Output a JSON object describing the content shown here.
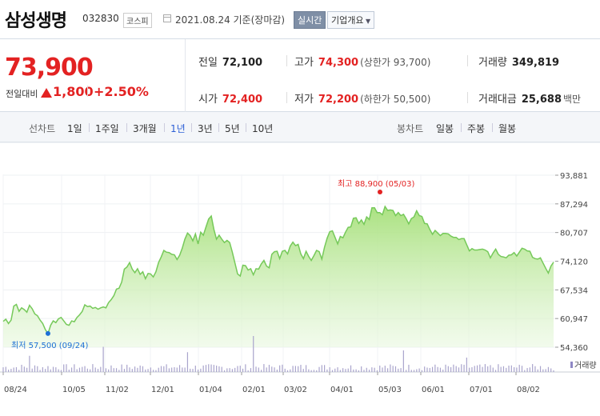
{
  "header": {
    "stock_name": "삼성생명",
    "stock_code": "032830",
    "market": "코스피",
    "date_text": "2021.08.24 기준(장마감)",
    "realtime_label": "실시간",
    "overview_label": "기업개요"
  },
  "summary": {
    "price": "73,900",
    "change_label": "전일대비",
    "change_value": "1,800",
    "change_percent": "+2.50%",
    "prev_close_label": "전일",
    "prev_close": "72,100",
    "high_label": "고가",
    "high": "74,300",
    "upper_limit": "(상한가 93,700)",
    "volume_label": "거래량",
    "volume": "349,819",
    "open_label": "시가",
    "open": "72,400",
    "low_label": "저가",
    "low": "72,200",
    "lower_limit": "(하한가 50,500)",
    "amount_label": "거래대금",
    "amount": "25,688",
    "amount_unit": "백만"
  },
  "periods": {
    "line_label": "선차트",
    "line_tabs": [
      "1일",
      "1주일",
      "3개월",
      "1년",
      "3년",
      "5년",
      "10년"
    ],
    "active_tab": "1년",
    "candle_label": "봉차트",
    "candle_tabs": [
      "일봉",
      "주봉",
      "월봉"
    ]
  },
  "colors": {
    "up": "#e32222",
    "down_marker": "#1d6fd6",
    "line": "#76c95a",
    "active_tab": "#2c5fd6"
  },
  "icons": [
    "calendar-icon",
    "up-triangle-icon",
    "chevron-down-icon"
  ],
  "chart_data": {
    "type": "area",
    "y_ticks": [
      "93,881",
      "87,294",
      "80,707",
      "74,120",
      "67,534",
      "60,947",
      "54,360"
    ],
    "ylim": [
      54360,
      93881
    ],
    "x_ticks": [
      "08/24",
      "10/05",
      "11/02",
      "12/01",
      "01/04",
      "02/01",
      "03/02",
      "04/01",
      "05/03",
      "06/01",
      "07/01",
      "08/02"
    ],
    "high_annotation": "최고 88,900 (05/03)",
    "low_annotation": "최저 57,500 (09/24)",
    "volume_legend": "거래량",
    "values": [
      60300,
      60800,
      59800,
      60600,
      63800,
      64200,
      62600,
      63400,
      63000,
      62400,
      64000,
      63200,
      62000,
      61600,
      60600,
      59800,
      58400,
      57500,
      59400,
      60400,
      60000,
      60900,
      61200,
      60400,
      59600,
      59400,
      60400,
      60200,
      61200,
      61800,
      62600,
      64100,
      63700,
      63800,
      63300,
      63500,
      63100,
      63400,
      63600,
      63400,
      64600,
      65300,
      66200,
      67700,
      67900,
      69300,
      72300,
      72800,
      73800,
      72300,
      71500,
      72400,
      71100,
      71700,
      70100,
      71300,
      71200,
      70500,
      71700,
      73800,
      75100,
      76600,
      76200,
      76100,
      75700,
      75600,
      74500,
      75500,
      77100,
      79200,
      80600,
      80000,
      78800,
      80400,
      78100,
      80800,
      80100,
      82000,
      83800,
      84500,
      81500,
      79200,
      80100,
      79200,
      78400,
      78900,
      78400,
      76200,
      73700,
      71200,
      70700,
      73200,
      73100,
      72100,
      72400,
      71000,
      72400,
      72300,
      73500,
      74300,
      73000,
      72600,
      75700,
      76300,
      76400,
      74700,
      76400,
      76600,
      75800,
      77600,
      78500,
      77700,
      78000,
      75800,
      74700,
      76400,
      75200,
      74300,
      75400,
      76600,
      76300,
      74600,
      77300,
      79400,
      80900,
      81100,
      79600,
      78100,
      79800,
      79500,
      80800,
      81900,
      82000,
      84000,
      84100,
      82800,
      83600,
      82600,
      84300,
      83700,
      86400,
      86400,
      85300,
      85300,
      84800,
      86700,
      85800,
      85900,
      85800,
      84600,
      85300,
      84600,
      84900,
      83900,
      82700,
      83900,
      84300,
      85700,
      84600,
      84400,
      82800,
      82700,
      81400,
      80300,
      81200,
      80600,
      80000,
      80500,
      80500,
      80400,
      79900,
      79600,
      79600,
      79100,
      79300,
      79300,
      77900,
      76500,
      77000,
      76700,
      76700,
      76800,
      76900,
      76700,
      76300,
      74900,
      76000,
      76900,
      75700,
      75200,
      75100,
      74900,
      75500,
      75600,
      76100,
      75300,
      76200,
      77100,
      76900,
      76500,
      76400,
      75000,
      74700,
      74600,
      74900,
      73700,
      72500,
      71400,
      73000,
      73900
    ]
  }
}
